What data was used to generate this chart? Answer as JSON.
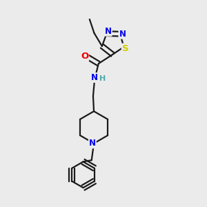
{
  "bg_color": "#ebebeb",
  "bond_color": "#1a1a1a",
  "bond_width": 1.6,
  "atom_colors": {
    "N": "#0000ee",
    "O": "#ee0000",
    "S": "#cccc00",
    "H": "#4fa8a8",
    "C": "#1a1a1a"
  },
  "font_size": 8.5
}
